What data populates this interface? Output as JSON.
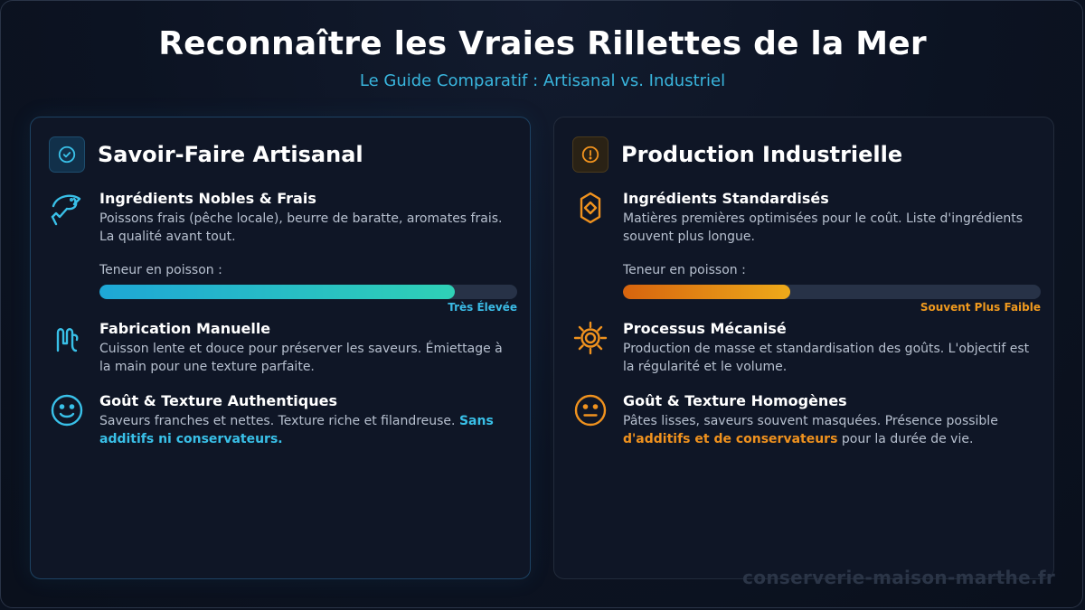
{
  "header": {
    "title": "Reconnaître les Vraies Rillettes de la Mer",
    "subtitle": "Le Guide Comparatif : Artisanal vs. Industriel"
  },
  "colors": {
    "accent_artisanal": "#39c0e8",
    "accent_industriel": "#f0921e",
    "background": "#0b1220"
  },
  "artisanal": {
    "icon": "check-circle-icon",
    "title": "Savoir-Faire Artisanal",
    "features": [
      {
        "icon": "fish-icon",
        "title": "Ingrédients Nobles & Frais",
        "desc": "Poissons frais (pêche locale), beurre de baratte, aromates frais. La qualité avant tout.",
        "meter": {
          "label": "Teneur en poisson :",
          "value_text": "Très Élevée",
          "level": 0.85
        }
      },
      {
        "icon": "hand-icon",
        "title": "Fabrication Manuelle",
        "desc": "Cuisson lente et douce pour préserver les saveurs. Émiettage à la main pour une texture parfaite."
      },
      {
        "icon": "smile-icon",
        "title": "Goût & Texture Authentiques",
        "desc": "Saveurs franches et nettes. Texture riche et filandreuse. ",
        "highlight": "Sans additifs ni conservateurs."
      }
    ]
  },
  "industriel": {
    "icon": "alert-circle-icon",
    "title": "Production Industrielle",
    "features": [
      {
        "icon": "hexagon-box-icon",
        "title": "Ingrédients Standardisés",
        "desc": "Matières premières optimisées pour le coût. Liste d'ingrédients souvent plus longue.",
        "meter": {
          "label": "Teneur en poisson :",
          "value_text": "Souvent Plus Faible",
          "level": 0.4
        }
      },
      {
        "icon": "gear-icon",
        "title": "Processus Mécanisé",
        "desc": "Production de masse et standardisation des goûts. L'objectif est la régularité et le volume."
      },
      {
        "icon": "neutral-face-icon",
        "title": "Goût & Texture Homogènes",
        "desc_before": "Pâtes lisses, saveurs souvent masquées. Présence possible ",
        "highlight": "d'additifs et de conservateurs",
        "desc_after": " pour la durée de vie."
      }
    ]
  },
  "watermark": "conserverie-maison-marthe.fr"
}
